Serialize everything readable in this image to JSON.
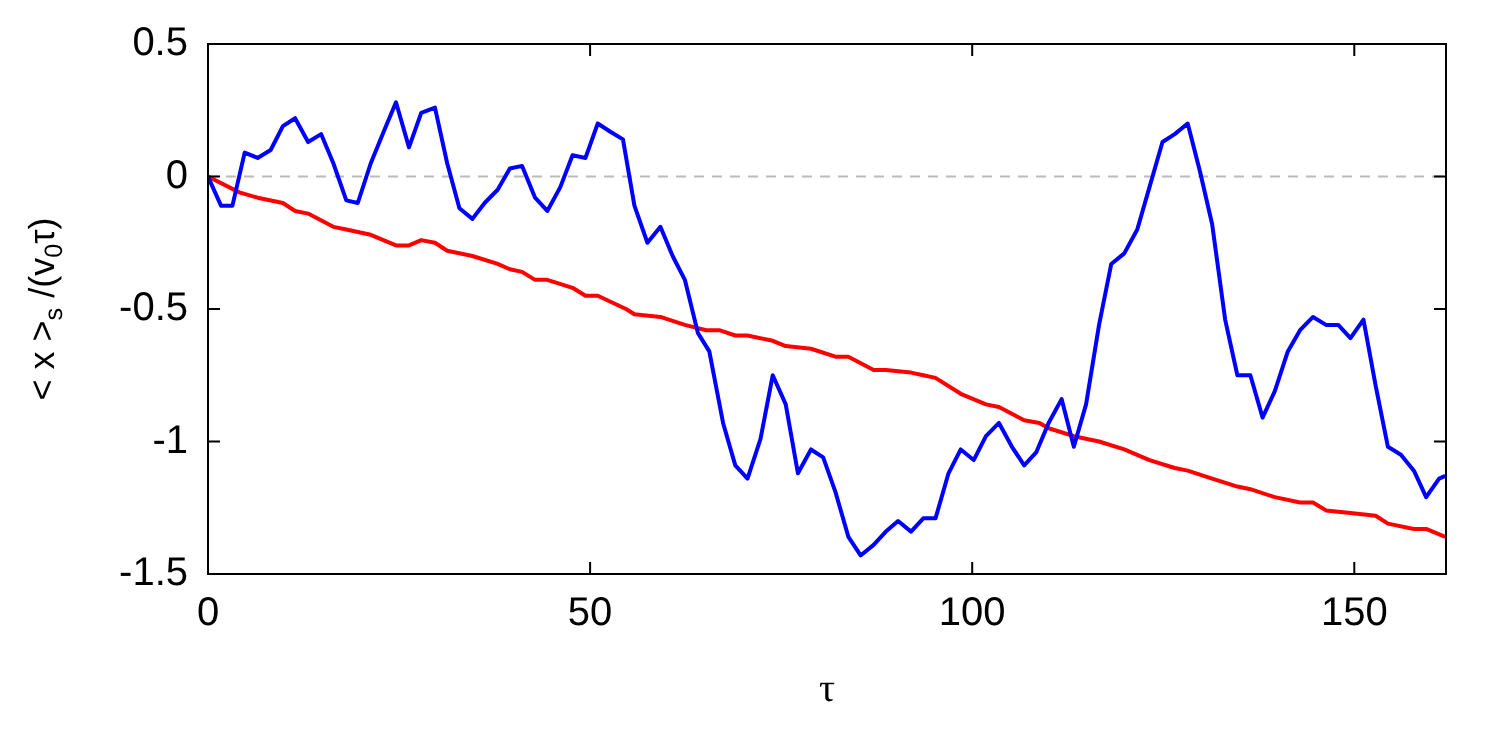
{
  "chart_data": {
    "type": "line",
    "xlabel": "τ",
    "ylabel": "< x >$_{s}$ /(v$_{0}$τ)",
    "xlim": [
      0,
      162
    ],
    "xticks": [
      0,
      50,
      100,
      150
    ],
    "ylim": [
      -1.5,
      0.5
    ],
    "yticks": [
      0.5,
      0,
      -0.5,
      -1,
      -1.5
    ],
    "grid": false,
    "legend": false,
    "marker": "none",
    "line_style": "solid",
    "ref_lines": [
      {
        "axis": "y",
        "value": 0,
        "color": "#bbbbbb",
        "line_style": "dashed"
      }
    ],
    "series": [
      {
        "color": "#0000ff",
        "x": [
          0,
          1.7,
          3.2,
          4.8,
          6.5,
          8.2,
          9.8,
          11.4,
          13.1,
          14.8,
          16.4,
          18.1,
          19.6,
          21.3,
          23,
          24.6,
          26.3,
          27.9,
          29.7,
          31.3,
          32.9,
          34.6,
          36.2,
          37.9,
          39.5,
          41.1,
          42.8,
          44.4,
          46.1,
          47.7,
          49.4,
          51,
          52.6,
          54.3,
          55.8,
          57.5,
          59.2,
          60.8,
          62.4,
          64.1,
          65.6,
          67.4,
          69,
          70.6,
          72.3,
          73.9,
          75.6,
          77.2,
          78.9,
          80.5,
          82.1,
          83.8,
          85.4,
          87.1,
          88.7,
          90.3,
          92,
          93.6,
          95.2,
          96.9,
          98.5,
          100.2,
          101.8,
          103.5,
          105.2,
          106.8,
          108.4,
          110,
          111.7,
          113.3,
          114.9,
          116.6,
          118.2,
          119.9,
          121.6,
          123.2,
          124.9,
          126.5,
          128.2,
          129.8,
          131.4,
          133.1,
          134.7,
          136.4,
          138,
          139.6,
          141.3,
          142.9,
          144.6,
          146.3,
          147.9,
          149.5,
          151.2,
          152.8,
          154.4,
          156.1,
          157.8,
          159.4,
          161.1,
          161.9
        ],
        "values": [
          0,
          -0.11,
          -0.11,
          0.09,
          0.07,
          0.1,
          0.19,
          0.22,
          0.13,
          0.16,
          0.05,
          -0.09,
          -0.1,
          0.05,
          0.17,
          0.28,
          0.11,
          0.24,
          0.26,
          0.05,
          -0.12,
          -0.16,
          -0.1,
          -0.05,
          0.03,
          0.04,
          -0.08,
          -0.13,
          -0.04,
          0.08,
          0.07,
          0.2,
          0.17,
          0.14,
          -0.11,
          -0.25,
          -0.19,
          -0.3,
          -0.39,
          -0.59,
          -0.66,
          -0.93,
          -1.09,
          -1.14,
          -0.99,
          -0.75,
          -0.86,
          -1.12,
          -1.03,
          -1.06,
          -1.19,
          -1.36,
          -1.43,
          -1.39,
          -1.34,
          -1.3,
          -1.34,
          -1.29,
          -1.29,
          -1.12,
          -1.03,
          -1.07,
          -0.98,
          -0.93,
          -1.02,
          -1.09,
          -1.04,
          -0.93,
          -0.84,
          -1.02,
          -0.86,
          -0.56,
          -0.33,
          -0.29,
          -0.2,
          -0.04,
          0.13,
          0.16,
          0.2,
          0.02,
          -0.18,
          -0.54,
          -0.75,
          -0.75,
          -0.91,
          -0.81,
          -0.66,
          -0.58,
          -0.53,
          -0.56,
          -0.56,
          -0.61,
          -0.54,
          -0.79,
          -1.02,
          -1.05,
          -1.11,
          -1.21,
          -1.14,
          -1.13
        ]
      },
      {
        "color": "#ff0000",
        "x": [
          0,
          4.1,
          6.5,
          9.8,
          11.4,
          13.1,
          16.4,
          18.1,
          21.3,
          24.6,
          26.3,
          27.9,
          29.7,
          31.3,
          34.6,
          37.9,
          39.5,
          41.1,
          42.8,
          44.4,
          47.7,
          49.4,
          51,
          54.7,
          55.8,
          59.2,
          62.4,
          65.2,
          66.9,
          69,
          70.6,
          73.9,
          75.6,
          78.9,
          82.1,
          83.8,
          87.1,
          88.7,
          92,
          93.6,
          95.2,
          98.5,
          101.8,
          103.5,
          106.8,
          108.8,
          110,
          113.3,
          116.6,
          119.9,
          123.2,
          126.5,
          128.2,
          131.4,
          134.7,
          136.4,
          139.6,
          142.9,
          144.6,
          146.3,
          149.5,
          152.8,
          154.4,
          157.8,
          159.4,
          161.9
        ],
        "values": [
          0,
          -0.06,
          -0.08,
          -0.1,
          -0.13,
          -0.14,
          -0.19,
          -0.2,
          -0.22,
          -0.26,
          -0.26,
          -0.24,
          -0.25,
          -0.28,
          -0.3,
          -0.33,
          -0.35,
          -0.36,
          -0.39,
          -0.39,
          -0.42,
          -0.45,
          -0.45,
          -0.5,
          -0.52,
          -0.53,
          -0.56,
          -0.58,
          -0.58,
          -0.6,
          -0.6,
          -0.62,
          -0.64,
          -0.65,
          -0.68,
          -0.68,
          -0.73,
          -0.73,
          -0.74,
          -0.75,
          -0.76,
          -0.82,
          -0.86,
          -0.87,
          -0.92,
          -0.93,
          -0.95,
          -0.98,
          -1,
          -1.03,
          -1.07,
          -1.1,
          -1.11,
          -1.14,
          -1.17,
          -1.18,
          -1.21,
          -1.23,
          -1.23,
          -1.26,
          -1.27,
          -1.28,
          -1.31,
          -1.33,
          -1.33,
          -1.36
        ]
      }
    ]
  }
}
